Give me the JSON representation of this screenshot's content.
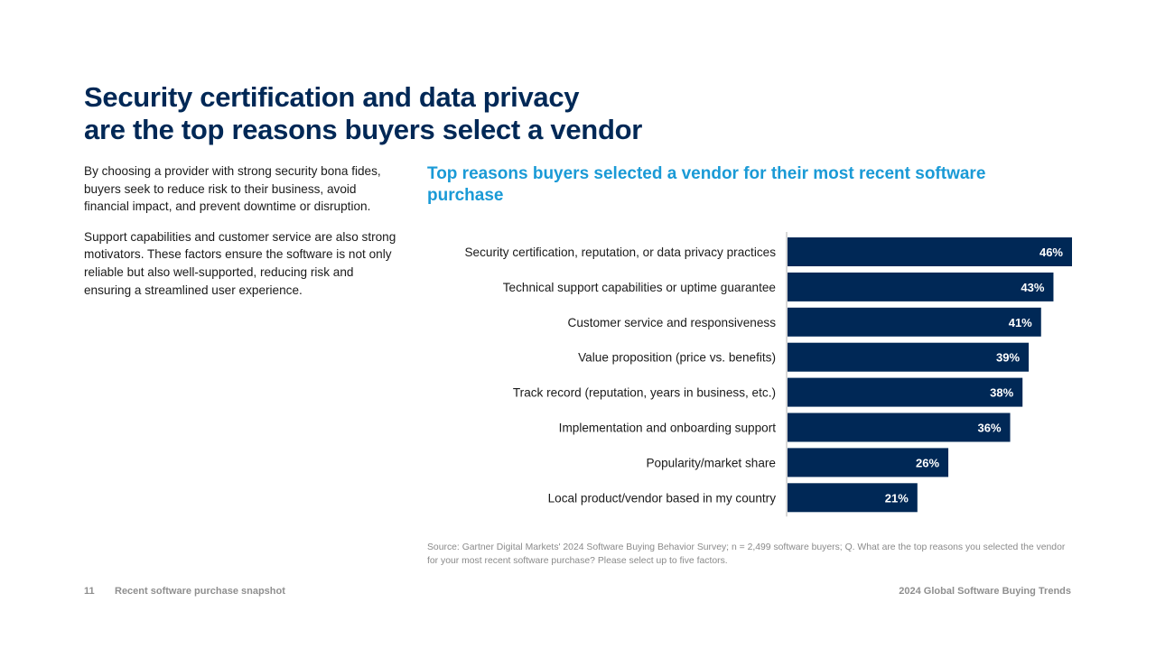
{
  "page": {
    "title_line1": "Security certification and data privacy",
    "title_line2": "are the top reasons buyers select a vendor",
    "intro_paragraph1": "By choosing a provider with strong security bona fides, buyers seek to reduce risk to their business, avoid financial impact, and prevent downtime or disruption.",
    "intro_paragraph2": "Support capabilities and customer service are also strong motivators. These factors ensure the software is not only reliable but also well-supported, reducing risk and ensuring a streamlined user experience."
  },
  "chart_data": {
    "type": "bar",
    "orientation": "horizontal",
    "title": "Top reasons buyers selected a vendor for their most recent software purchase",
    "categories": [
      "Security certification, reputation, or data privacy practices",
      "Technical support capabilities or uptime guarantee",
      "Customer service and responsiveness",
      "Value proposition (price vs. benefits)",
      "Track record (reputation, years in business, etc.)",
      "Implementation and onboarding support",
      "Popularity/market share",
      "Local product/vendor based in my country"
    ],
    "values": [
      46,
      43,
      41,
      39,
      38,
      36,
      26,
      21
    ],
    "value_labels": [
      "46%",
      "43%",
      "41%",
      "39%",
      "38%",
      "36%",
      "26%",
      "21%"
    ],
    "unit": "%",
    "xlim": [
      0,
      46
    ],
    "bar_color": "#002856",
    "label_color": "#ffffff",
    "axis_color": "#b0b0b0"
  },
  "source": {
    "text": "Source: Gartner Digital Markets' 2024 Software Buying Behavior Survey; n = 2,499 software buyers; Q. What are the top reasons you selected the vendor for your most recent software purchase? Please select up to five factors."
  },
  "footer": {
    "page_number": "11",
    "section": "Recent software purchase snapshot",
    "report": "2024 Global Software Buying Trends"
  }
}
